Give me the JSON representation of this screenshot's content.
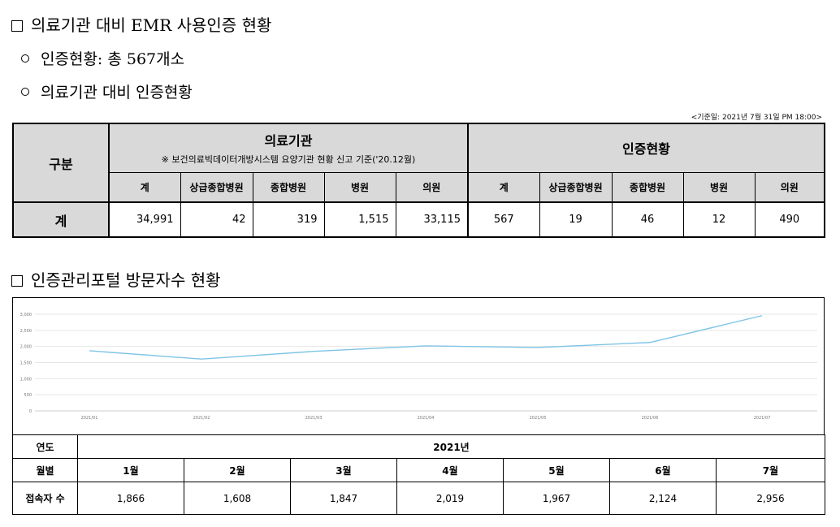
{
  "section1": {
    "title": "의료기관 대비 EMR 사용인증 현황",
    "bullet1": "인증현황: 총 567개소",
    "bullet2": "의료기관 대비 인증현황",
    "basis": "<기준일: 2021년 7월 31일 PM 18:00>"
  },
  "table1": {
    "category_header": "구분",
    "group1_title": "의료기관",
    "group1_note": "※ 보건의료빅데이터개방시스템 요양기관 현황 신고 기준('20.12월)",
    "group2_title": "인증현황",
    "columns": [
      "계",
      "상급종합병원",
      "종합병원",
      "병원",
      "의원",
      "계",
      "상급종합병원",
      "종합병원",
      "병원",
      "의원"
    ],
    "row_label": "계",
    "values": [
      "34,991",
      "42",
      "319",
      "1,515",
      "33,115",
      "567",
      "19",
      "46",
      "12",
      "490"
    ]
  },
  "section2": {
    "title": "인증관리포털 방문자수 현황"
  },
  "chart_data": {
    "type": "line",
    "x": [
      "2021/01",
      "2021/02",
      "2021/03",
      "2021/04",
      "2021/05",
      "2021/06",
      "2021/07"
    ],
    "series": [
      {
        "values": [
          1866,
          1608,
          1847,
          2019,
          1967,
          2124,
          2956
        ]
      }
    ],
    "y_ticks": [
      "3,000",
      "2,500",
      "2,000",
      "1,500",
      "1,000",
      "500",
      "0"
    ],
    "ylim": [
      0,
      3000
    ],
    "grid": true,
    "line_color": "#7fc4e6"
  },
  "table2": {
    "year_header": "연도",
    "year_value": "2021년",
    "month_header": "월별",
    "months": [
      "1월",
      "2월",
      "3월",
      "4월",
      "5월",
      "6월",
      "7월"
    ],
    "visitors_header": "접속자 수",
    "visitors": [
      "1,866",
      "1,608",
      "1,847",
      "2,019",
      "1,967",
      "2,124",
      "2,956"
    ]
  }
}
